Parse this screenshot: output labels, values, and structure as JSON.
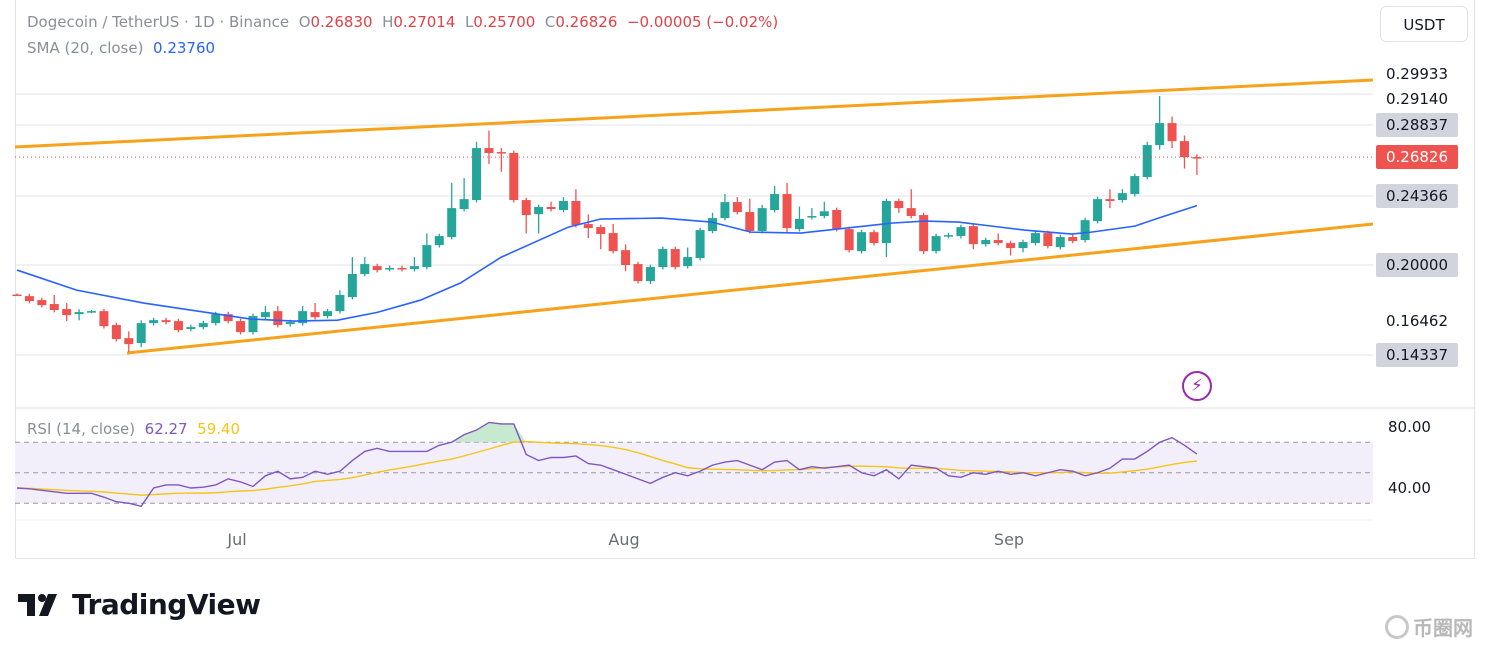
{
  "header": {
    "symbol": "Dogecoin / TetherUS · 1D · Binance",
    "open_label": "O",
    "open": "0.26830",
    "high_label": "H",
    "high": "0.27014",
    "low_label": "L",
    "low": "0.25700",
    "close_label": "C",
    "close": "0.26826",
    "change": "−0.00005 (−0.02%)",
    "sma_label": "SMA (20, close)",
    "sma_value": "0.23760",
    "rsi_label": "RSI (14, close)",
    "rsi_value": "62.27",
    "rsi_ma_value": "59.40"
  },
  "currency_button": "USDT",
  "price_axis": [
    {
      "text": "0.29933",
      "style": "plain"
    },
    {
      "text": "0.29140",
      "style": "plain"
    },
    {
      "text": "0.28837",
      "style": "box"
    },
    {
      "text": "0.26826",
      "style": "last"
    },
    {
      "text": "0.24366",
      "style": "box"
    },
    {
      "text": "0.20000",
      "style": "box"
    },
    {
      "text": "0.16462",
      "style": "plain"
    },
    {
      "text": "0.14337",
      "style": "box"
    }
  ],
  "rsi_axis": [
    "80.00",
    "40.00"
  ],
  "date_axis": [
    "Jul",
    "Aug",
    "Sep"
  ],
  "branding": {
    "logo": "TradingView",
    "watermark": "币圈网"
  },
  "colors": {
    "up": "#26a69a",
    "down": "#ef5350",
    "sma": "#2962ff",
    "trend": "#f7a21b",
    "rsi": "#7e57c2",
    "rsi_ma": "#f5c518",
    "last_price": "#ef5350"
  },
  "chart_data": {
    "type": "candlestick",
    "title": "Dogecoin / TetherUS · 1D · Binance",
    "x_range": [
      "Jun 13",
      "Sep 16"
    ],
    "ylim": [
      0.135,
      0.31
    ],
    "candles_oc_hl": [
      [
        0.1813,
        0.181,
        0.182,
        0.1805
      ],
      [
        0.1803,
        0.1772,
        null,
        null
      ],
      [
        0.1778,
        0.1746,
        null,
        null
      ],
      [
        0.1753,
        0.1715,
        0.181,
        null
      ],
      [
        0.1721,
        0.1683,
        0.1759,
        0.1645
      ],
      [
        0.1689,
        0.1702,
        0.172,
        0.165
      ],
      [
        0.17,
        0.1708,
        0.1715,
        0.1695
      ],
      [
        0.1708,
        0.1613,
        null,
        null
      ],
      [
        0.162,
        0.1531,
        null,
        null
      ],
      [
        0.1537,
        0.1499,
        0.158,
        0.1448
      ],
      [
        0.1506,
        0.1632,
        0.165,
        0.148
      ],
      [
        0.1632,
        0.1651,
        null,
        null
      ],
      [
        0.1651,
        0.1639,
        null,
        null
      ],
      [
        0.1645,
        0.1588,
        null,
        null
      ],
      [
        0.1595,
        0.1607,
        null,
        null
      ],
      [
        0.1607,
        0.1632,
        null,
        null
      ],
      [
        0.1632,
        0.1689,
        null,
        null
      ],
      [
        0.1689,
        0.1645,
        null,
        null
      ],
      [
        0.1645,
        0.1575,
        null,
        null
      ],
      [
        0.1575,
        0.1677,
        null,
        null
      ],
      [
        0.167,
        0.1702,
        0.174,
        null
      ],
      [
        0.1708,
        0.162,
        0.174,
        null
      ],
      [
        0.1626,
        0.1639,
        null,
        null
      ],
      [
        0.1632,
        0.1708,
        0.174,
        null
      ],
      [
        0.1702,
        0.167,
        0.176,
        null
      ],
      [
        0.1677,
        0.1708,
        null,
        null
      ],
      [
        0.1708,
        0.181,
        0.184,
        null
      ],
      [
        0.1797,
        0.1943,
        0.205,
        null
      ],
      [
        0.1943,
        0.2006,
        0.205,
        null
      ],
      [
        0.1993,
        0.1968,
        null,
        null
      ],
      [
        0.1975,
        0.1981,
        null,
        null
      ],
      [
        0.1981,
        0.1974,
        null,
        null
      ],
      [
        0.1974,
        0.1993,
        0.205,
        null
      ],
      [
        0.1987,
        0.2126,
        0.22,
        null
      ],
      [
        0.2126,
        0.2183,
        null,
        null
      ],
      [
        0.2177,
        0.236,
        0.252,
        null
      ],
      [
        0.2354,
        0.2417,
        0.255,
        null
      ],
      [
        0.2411,
        0.274,
        0.278,
        null
      ],
      [
        0.274,
        0.2709,
        0.285,
        0.264
      ],
      [
        0.2715,
        0.2712,
        0.274,
        0.259
      ],
      [
        0.2709,
        0.2411,
        null,
        null
      ],
      [
        0.2411,
        0.2316,
        null,
        0.22
      ],
      [
        0.2322,
        0.2367,
        null,
        0.22
      ],
      [
        0.2367,
        0.2354,
        0.24,
        null
      ],
      [
        0.2348,
        0.2405,
        0.243,
        null
      ],
      [
        0.2405,
        0.2253,
        0.248,
        null
      ],
      [
        0.2259,
        0.2234,
        0.232,
        0.217
      ],
      [
        0.224,
        0.2196,
        null,
        0.21
      ],
      [
        0.2202,
        0.2088,
        0.226,
        null
      ],
      [
        0.2094,
        0.2,
        0.213,
        0.196
      ],
      [
        0.2006,
        0.1898,
        null,
        null
      ],
      [
        0.1898,
        0.1987,
        null,
        0.188
      ],
      [
        0.1987,
        0.2101,
        null,
        null
      ],
      [
        0.2101,
        0.1987,
        null,
        null
      ],
      [
        0.1993,
        0.205,
        0.211,
        null
      ],
      [
        0.2044,
        0.2221,
        null,
        null
      ],
      [
        0.2215,
        0.2297,
        0.233,
        null
      ],
      [
        0.2297,
        0.2398,
        0.245,
        null
      ],
      [
        0.2398,
        0.2335,
        0.243,
        null
      ],
      [
        0.2335,
        0.2215,
        0.242,
        null
      ],
      [
        0.2215,
        0.236,
        0.238,
        null
      ],
      [
        0.2348,
        0.2449,
        0.25,
        null
      ],
      [
        0.2449,
        0.2234,
        0.252,
        0.22
      ],
      [
        0.2227,
        0.2291,
        0.237,
        null
      ],
      [
        0.2303,
        0.231,
        0.236,
        null
      ],
      [
        0.231,
        0.234,
        0.24,
        null
      ],
      [
        0.2348,
        0.2227,
        null,
        null
      ],
      [
        0.2227,
        0.2094,
        null,
        null
      ],
      [
        0.2088,
        0.2208,
        null,
        null
      ],
      [
        0.2208,
        0.2139,
        null,
        null
      ],
      [
        0.2139,
        0.2405,
        0.242,
        0.205
      ],
      [
        0.2405,
        0.236,
        null,
        0.233
      ],
      [
        0.236,
        0.231,
        0.248,
        null
      ],
      [
        0.2316,
        0.2088,
        null,
        0.207
      ],
      [
        0.2088,
        0.2183,
        null,
        null
      ],
      [
        0.2183,
        0.2189,
        null,
        null
      ],
      [
        0.2183,
        0.224,
        null,
        null
      ],
      [
        0.2246,
        0.2132,
        null,
        0.21
      ],
      [
        0.2132,
        0.2158,
        null,
        null
      ],
      [
        0.2158,
        0.2139,
        0.22,
        null
      ],
      [
        0.2139,
        0.2107,
        null,
        0.206
      ],
      [
        0.2107,
        0.2145,
        null,
        0.208
      ],
      [
        0.2139,
        0.2202,
        null,
        null
      ],
      [
        0.2202,
        0.212,
        null,
        null
      ],
      [
        0.2113,
        0.2177,
        null,
        null
      ],
      [
        0.2177,
        0.2152,
        null,
        null
      ],
      [
        0.2158,
        0.2284,
        null,
        null
      ],
      [
        0.2278,
        0.2417,
        null,
        null
      ],
      [
        0.2417,
        0.2405,
        0.248,
        0.236
      ],
      [
        0.2411,
        0.2455,
        0.248,
        null
      ],
      [
        0.2449,
        0.2563,
        null,
        null
      ],
      [
        0.2557,
        0.2759,
        0.278,
        null
      ],
      [
        0.2759,
        0.2898,
        0.3069,
        0.273
      ],
      [
        0.2898,
        0.2784,
        0.294,
        0.274
      ],
      [
        0.2784,
        0.2683,
        0.282,
        0.261
      ],
      [
        0.2683,
        0.26826,
        0.27014,
        0.257
      ]
    ],
    "sma20_points": [
      [
        0,
        0.1968
      ],
      [
        4.8,
        0.1841
      ],
      [
        10.2,
        0.1759
      ],
      [
        15.6,
        0.1696
      ],
      [
        18.8,
        0.1658
      ],
      [
        22.3,
        0.1645
      ],
      [
        25.8,
        0.1651
      ],
      [
        29,
        0.17
      ],
      [
        32.5,
        0.1778
      ],
      [
        35.7,
        0.1886
      ],
      [
        39,
        0.205
      ],
      [
        44.4,
        0.224
      ],
      [
        47,
        0.2291
      ],
      [
        51.9,
        0.2297
      ],
      [
        55.9,
        0.2272
      ],
      [
        59.1,
        0.2208
      ],
      [
        63.1,
        0.2202
      ],
      [
        70.4,
        0.2265
      ],
      [
        73.1,
        0.2278
      ],
      [
        75.8,
        0.2272
      ],
      [
        78.5,
        0.2246
      ],
      [
        81.1,
        0.2221
      ],
      [
        84.9,
        0.2196
      ],
      [
        86.5,
        0.2208
      ],
      [
        90,
        0.2246
      ],
      [
        91.9,
        0.2297
      ],
      [
        95,
        0.2376
      ]
    ],
    "rsi": [
      40,
      39.5,
      38.5,
      37.5,
      36.5,
      36.5,
      36.5,
      34,
      31,
      30,
      28,
      40,
      42,
      42,
      40,
      40.5,
      42,
      46,
      44,
      41,
      48,
      51,
      46,
      47,
      51,
      49,
      51,
      58,
      64,
      66,
      64,
      64,
      64,
      64,
      68,
      70,
      75,
      78,
      83,
      82,
      82,
      62,
      58,
      60,
      60,
      61,
      56,
      55,
      52,
      49,
      46,
      43,
      47,
      50,
      48,
      51,
      55,
      57,
      58,
      55,
      52,
      57,
      58,
      52,
      54,
      53,
      54,
      55,
      50,
      48,
      52,
      46,
      55,
      54,
      53,
      48,
      47,
      50,
      49,
      51,
      49,
      50,
      48,
      50,
      52,
      51,
      48,
      50,
      53,
      59,
      59,
      64,
      70,
      73,
      68,
      62.27
    ],
    "rsi_ylim": [
      20,
      90
    ],
    "rsi_levels": [
      70,
      50,
      30
    ]
  }
}
